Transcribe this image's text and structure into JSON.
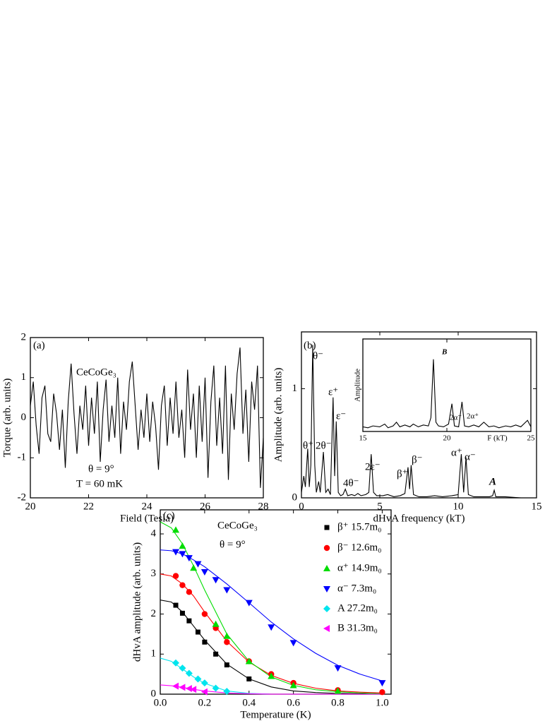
{
  "chart_data": [
    {
      "type": "line",
      "panel_label": "(a)",
      "xlabel": "Field (Tesla)",
      "ylabel": "Torque (arb. units)",
      "annotations": [
        "CeCoGe₃",
        "θ = 9°",
        "T = 60 mK"
      ],
      "color": "#000000",
      "xlim": [
        20,
        28
      ],
      "ylim": [
        -2,
        2
      ],
      "xticks": [
        20,
        22,
        24,
        26,
        28
      ],
      "yticks": [
        -2,
        -1,
        0,
        1,
        2
      ],
      "x": [
        20,
        20.1,
        20.2,
        20.3,
        20.4,
        20.5,
        20.6,
        20.7,
        20.8,
        20.9,
        21,
        21.1,
        21.2,
        21.3,
        21.4,
        21.5,
        21.6,
        21.7,
        21.8,
        21.9,
        22,
        22.1,
        22.2,
        22.3,
        22.4,
        22.5,
        22.6,
        22.7,
        22.8,
        22.9,
        23,
        23.1,
        23.2,
        23.3,
        23.4,
        23.5,
        23.6,
        23.7,
        23.8,
        23.9,
        24,
        24.1,
        24.2,
        24.3,
        24.4,
        24.5,
        24.6,
        24.7,
        24.8,
        24.9,
        25,
        25.1,
        25.2,
        25.3,
        25.4,
        25.5,
        25.6,
        25.7,
        25.8,
        25.9,
        26,
        26.1,
        26.2,
        26.3,
        26.4,
        26.5,
        26.6,
        26.7,
        26.8,
        26.9,
        27,
        27.1,
        27.2,
        27.3,
        27.4,
        27.5,
        27.6,
        27.7,
        27.8,
        27.9,
        28
      ],
      "values": [
        0.3,
        0.9,
        -0.2,
        -0.9,
        0.5,
        0.8,
        -0.4,
        -0.6,
        0.6,
        0.1,
        -0.8,
        0.2,
        -1.25,
        0.4,
        1.35,
        0.1,
        -0.9,
        0.3,
        -0.3,
        0.8,
        -0.7,
        0.5,
        -0.4,
        0.9,
        -1.1,
        0.2,
        0.95,
        -0.6,
        0.3,
        -0.5,
        1.0,
        -0.9,
        0.4,
        -0.3,
        0.9,
        1.4,
        0.3,
        -0.8,
        0.2,
        -0.5,
        0.6,
        -0.6,
        0.4,
        -0.2,
        -1.3,
        0.3,
        0.8,
        -0.7,
        0.5,
        -0.4,
        0.9,
        -0.5,
        0.2,
        -1.0,
        1.2,
        -0.3,
        0.6,
        -1.0,
        0.8,
        -0.6,
        1.0,
        -1.5,
        0.4,
        1.3,
        -0.7,
        0.5,
        -0.9,
        1.3,
        -1.55,
        0.6,
        -0.3,
        1.1,
        1.75,
        -0.4,
        0.7,
        -1.1,
        0.9,
        0.2,
        1.3,
        -1.75,
        -0.5
      ]
    },
    {
      "type": "line",
      "panel_label": "(b)",
      "xlabel": "dHvA frequency (kT)",
      "ylabel": "Amplitude (arb. units)",
      "annotations": [
        "θ⁻",
        "θ⁺",
        "2θ⁻",
        "ε⁺",
        "ε⁻",
        "4θ⁻",
        "2ε⁻",
        "β⁺",
        "β⁻",
        "α⁺",
        "α⁻",
        "A"
      ],
      "color": "#000000",
      "xlim": [
        0,
        15
      ],
      "ylim": [
        0,
        1.52
      ],
      "xticks": [
        0,
        5,
        10,
        15
      ],
      "yticks": [
        0,
        1
      ],
      "x": [
        0,
        0.15,
        0.25,
        0.4,
        0.5,
        0.6,
        0.72,
        0.85,
        0.95,
        1.1,
        1.2,
        1.4,
        1.55,
        1.7,
        1.85,
        2.02,
        2.12,
        2.22,
        2.35,
        2.5,
        2.65,
        2.8,
        2.95,
        3.2,
        3.4,
        3.6,
        3.8,
        4.1,
        4.3,
        4.45,
        4.6,
        4.8,
        5.2,
        5.5,
        5.9,
        6.3,
        6.6,
        6.8,
        6.9,
        7.0,
        7.15,
        7.5,
        8,
        8.5,
        9,
        9.6,
        10.0,
        10.2,
        10.35,
        10.5,
        10.65,
        11,
        11.5,
        12.0,
        12.2,
        12.3,
        12.4,
        13,
        14,
        15
      ],
      "values": [
        0.05,
        0.2,
        0.1,
        0.45,
        0.1,
        0.3,
        1.4,
        0.3,
        0.05,
        0.15,
        0.05,
        0.42,
        0.05,
        0.08,
        0.03,
        0.92,
        0.2,
        0.7,
        0.05,
        0.02,
        0.03,
        0.08,
        0.02,
        0.03,
        0.02,
        0.04,
        0.02,
        0.03,
        0.05,
        0.4,
        0.05,
        0.02,
        0.02,
        0.03,
        0.01,
        0.02,
        0.04,
        0.28,
        0.08,
        0.3,
        0.03,
        0.01,
        0.01,
        0.02,
        0.01,
        0.02,
        0.03,
        0.4,
        0.05,
        0.37,
        0.03,
        0.01,
        0.01,
        0.01,
        0.02,
        0.07,
        0.01,
        0.01,
        0,
        0
      ]
    },
    {
      "type": "line",
      "xlabel": "F (kT)",
      "ylabel": "Amplitude",
      "annotations": [
        "B",
        "2α⁻",
        "2α⁺"
      ],
      "color": "#000000",
      "xlim": [
        15,
        25
      ],
      "ylim": [
        0,
        1
      ],
      "xticks": [
        15,
        20,
        25
      ],
      "x": [
        15,
        15.3,
        15.6,
        16,
        16.3,
        16.5,
        16.8,
        17,
        17.2,
        17.5,
        17.8,
        18,
        18.3,
        18.6,
        18.9,
        19.05,
        19.2,
        19.35,
        19.5,
        19.8,
        20.1,
        20.3,
        20.45,
        20.7,
        20.9,
        21.05,
        21.3,
        21.6,
        21.9,
        22.2,
        22.5,
        22.8,
        23.1,
        23.5,
        23.8,
        24.1,
        24.4,
        24.8,
        25
      ],
      "values": [
        0.05,
        0.04,
        0.06,
        0.05,
        0.08,
        0.04,
        0.06,
        0.1,
        0.05,
        0.07,
        0.05,
        0.08,
        0.05,
        0.07,
        0.06,
        0.15,
        0.78,
        0.1,
        0.06,
        0.05,
        0.08,
        0.3,
        0.06,
        0.05,
        0.32,
        0.06,
        0.05,
        0.07,
        0.05,
        0.1,
        0.05,
        0.06,
        0.04,
        0.06,
        0.05,
        0.07,
        0.05,
        0.12,
        0.05
      ]
    },
    {
      "type": "scatter",
      "panel_label": "(c)",
      "xlabel": "Temperature (K)",
      "ylabel": "dHvA amplitude (arb. units)",
      "annotations": [
        "CeCoGe₃",
        "θ = 9°"
      ],
      "legend": "upper right",
      "xlim": [
        0,
        1.04
      ],
      "ylim": [
        0,
        4.6
      ],
      "xticks": [
        {
          "value": 0,
          "label": "0.0"
        },
        0.2,
        0.4,
        0.6,
        0.8,
        {
          "value": 1,
          "label": "1.0"
        }
      ],
      "yticks": [
        0,
        1,
        2,
        3,
        4
      ],
      "fit_x": [
        0,
        0.05,
        0.1,
        0.15,
        0.2,
        0.3,
        0.4,
        0.5,
        0.6,
        0.7,
        0.8,
        0.9,
        1.0
      ],
      "series": [
        {
          "name": "β⁺ 15.7m₀",
          "color": "#000000",
          "marker": "square",
          "x": [
            0.07,
            0.1,
            0.13,
            0.17,
            0.2,
            0.25,
            0.3,
            0.4
          ],
          "values": [
            2.22,
            2.02,
            1.83,
            1.55,
            1.3,
            1.0,
            0.73,
            0.38
          ],
          "fit_values": [
            2.35,
            2.3,
            2.05,
            1.7,
            1.35,
            0.75,
            0.38,
            0.18,
            0.08,
            0.04,
            0.02,
            0.01,
            0
          ]
        },
        {
          "name": "β⁻ 12.6m₀",
          "color": "#ff0000",
          "marker": "circle",
          "x": [
            0.07,
            0.1,
            0.13,
            0.2,
            0.25,
            0.3,
            0.4,
            0.5,
            0.6,
            0.8,
            1.0
          ],
          "values": [
            2.95,
            2.72,
            2.55,
            2.0,
            1.65,
            1.3,
            0.82,
            0.5,
            0.28,
            0.1,
            0.05
          ],
          "fit_values": [
            3.0,
            2.95,
            2.75,
            2.45,
            2.05,
            1.32,
            0.8,
            0.47,
            0.27,
            0.15,
            0.08,
            0.05,
            0.03
          ]
        },
        {
          "name": "α⁺ 14.9m₀",
          "color": "#00dd00",
          "marker": "triangle-up",
          "x": [
            0.07,
            0.1,
            0.15,
            0.25,
            0.3,
            0.4,
            0.5,
            0.6,
            0.8
          ],
          "values": [
            4.1,
            3.7,
            3.15,
            1.75,
            1.45,
            0.82,
            0.45,
            0.22,
            0.08
          ],
          "fit_values": [
            4.3,
            4.15,
            3.75,
            3.2,
            2.6,
            1.5,
            0.82,
            0.43,
            0.22,
            0.11,
            0.06,
            0.03,
            0.01
          ]
        },
        {
          "name": "α⁻ 7.3m₀",
          "color": "#0000ff",
          "marker": "triangle-down",
          "x": [
            0.07,
            0.1,
            0.13,
            0.17,
            0.2,
            0.25,
            0.3,
            0.4,
            0.5,
            0.6,
            0.8,
            1.0
          ],
          "values": [
            3.55,
            3.5,
            3.4,
            3.25,
            3.05,
            2.85,
            2.6,
            2.28,
            1.67,
            1.28,
            0.65,
            0.28
          ],
          "fit_values": [
            3.6,
            3.58,
            3.5,
            3.35,
            3.18,
            2.75,
            2.28,
            1.8,
            1.38,
            1.02,
            0.72,
            0.5,
            0.33
          ]
        },
        {
          "name": "A 27.2m₀",
          "color": "#00e5ee",
          "marker": "diamond",
          "x": [
            0.07,
            0.1,
            0.13,
            0.17,
            0.2,
            0.25,
            0.3
          ],
          "values": [
            0.78,
            0.65,
            0.52,
            0.38,
            0.28,
            0.15,
            0.07
          ],
          "fit_values": [
            0.9,
            0.82,
            0.63,
            0.43,
            0.27,
            0.08,
            0.02,
            0,
            0,
            0,
            0,
            0,
            0
          ]
        },
        {
          "name": "B 31.3m₀",
          "color": "#ff00ff",
          "marker": "triangle-left",
          "x": [
            0.07,
            0.1,
            0.13,
            0.15,
            0.2
          ],
          "values": [
            0.2,
            0.17,
            0.14,
            0.12,
            0.06
          ],
          "fit_values": [
            0.23,
            0.21,
            0.17,
            0.12,
            0.08,
            0.03,
            0.01,
            0,
            0,
            0,
            0,
            0,
            0
          ]
        }
      ]
    }
  ]
}
